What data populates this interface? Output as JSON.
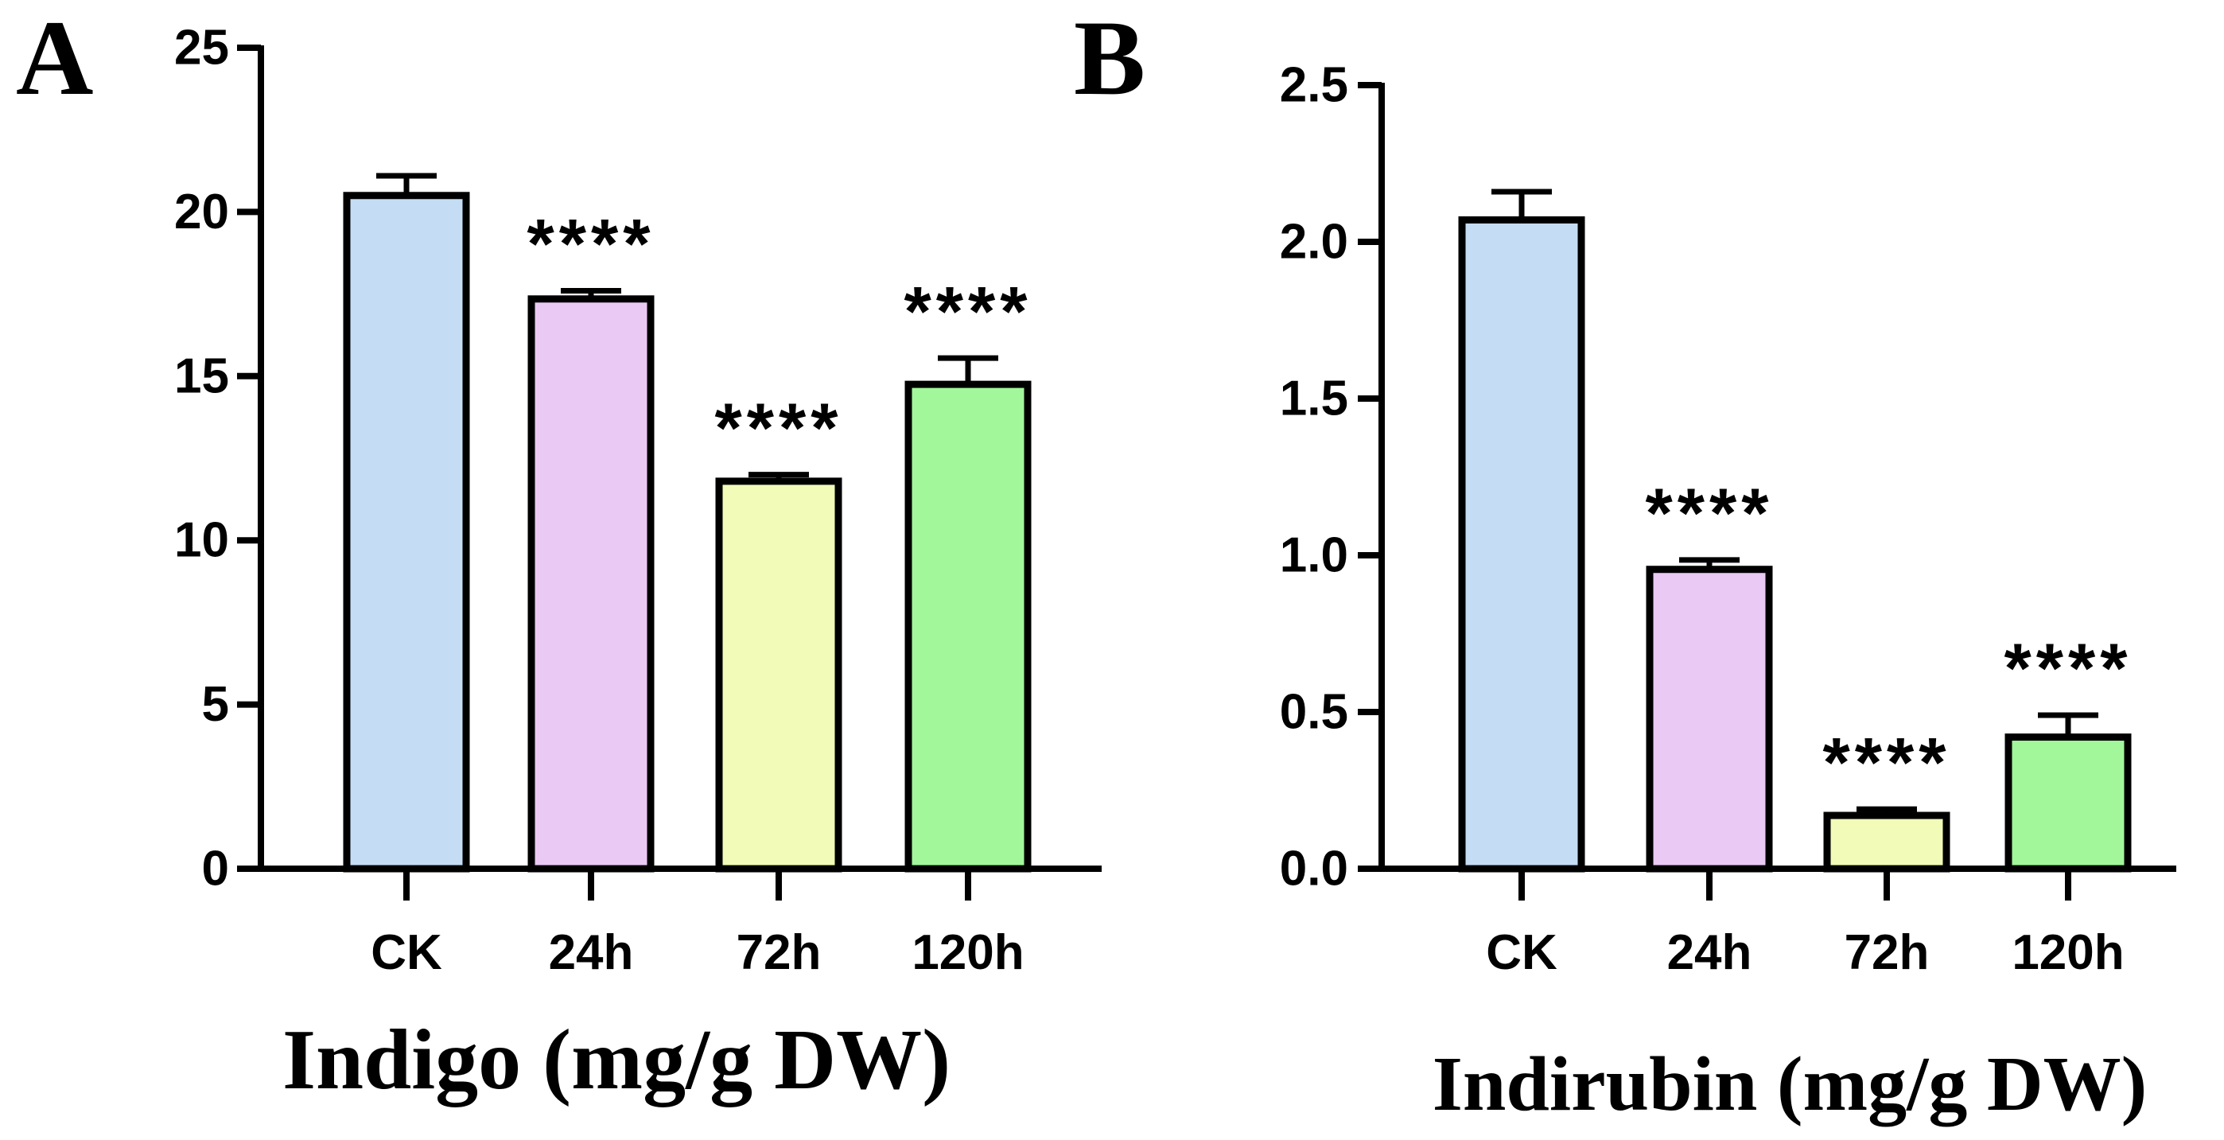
{
  "chart_data": [
    {
      "panel": "A",
      "type": "bar",
      "categories": [
        "CK",
        "24h",
        "72h",
        "120h"
      ],
      "values": [
        20.5,
        17.35,
        11.8,
        14.75
      ],
      "errors": [
        0.6,
        0.25,
        0.2,
        0.8
      ],
      "significance": [
        "",
        "****",
        "****",
        "****"
      ],
      "colors": [
        "#c5dcf5",
        "#ebc9f5",
        "#f2fbb8",
        "#a2f79b"
      ],
      "ylim": [
        0,
        25
      ],
      "yticks": [
        0,
        5,
        10,
        15,
        20,
        25
      ],
      "ytick_labels": [
        "0",
        "5",
        "10",
        "15",
        "20",
        "25"
      ],
      "xlabel": "Indigo (mg/g DW)",
      "ylabel": "",
      "title": ""
    },
    {
      "panel": "B",
      "type": "bar",
      "categories": [
        "CK",
        "24h",
        "72h",
        "120h"
      ],
      "values": [
        2.07,
        0.955,
        0.17,
        0.42
      ],
      "errors": [
        0.09,
        0.03,
        0.02,
        0.07
      ],
      "significance": [
        "",
        "****",
        "****",
        "****"
      ],
      "colors": [
        "#c5dcf5",
        "#ebc9f5",
        "#f2fbb8",
        "#a2f79b"
      ],
      "ylim": [
        0,
        2.5
      ],
      "yticks": [
        0,
        0.5,
        1.0,
        1.5,
        2.0,
        2.5
      ],
      "ytick_labels": [
        "0.0",
        "0.5",
        "1.0",
        "1.5",
        "2.0",
        "2.5"
      ],
      "xlabel": "Indirubin (mg/g DW)",
      "ylabel": "",
      "title": ""
    }
  ]
}
